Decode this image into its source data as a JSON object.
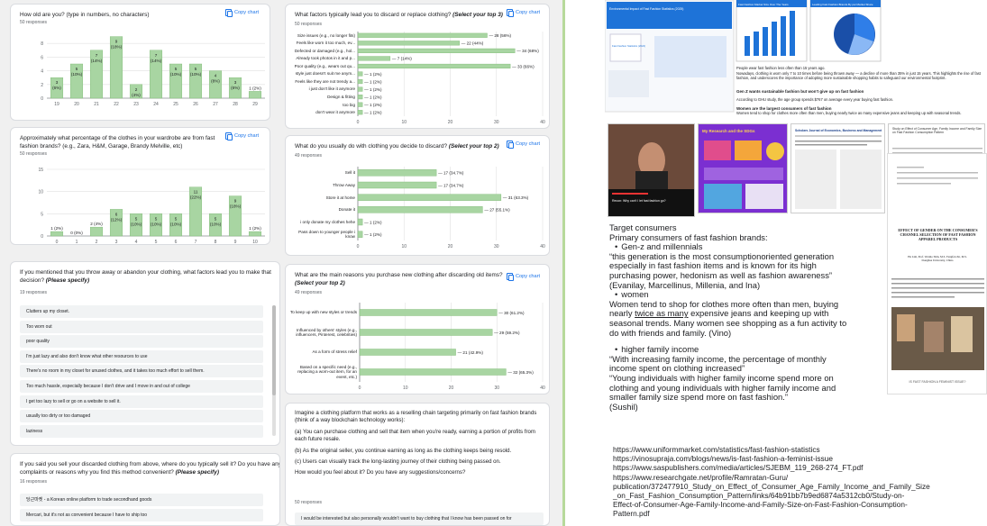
{
  "colors": {
    "bar": "#a8d5a2",
    "bar_stroke": "#7cb872",
    "accent": "#1a73e8",
    "grid": "#e0e0e0"
  },
  "copy_label": "Copy chart",
  "card_age": {
    "question": "How old are you? (type in numbers, no characters)",
    "responses": "50 responses"
  },
  "card_factors": {
    "question": "What factors typically lead you to discard or replace clothing?",
    "question_em": "(Select your top 3)",
    "responses": "50 responses"
  },
  "card_percent": {
    "question": "Approximately what percentage of the clothes in your wardrobe are from fast fashion brands? (e.g., Zara, H&M, Garage, Brandy Melville, etc)",
    "responses": "50 responses"
  },
  "card_discard": {
    "question": "What do you usually do with clothing you decide to discard?",
    "question_em": "(Select your top 2)",
    "responses": "49 responses"
  },
  "card_throw": {
    "question": "If you mentioned that you throw away or abandon your clothing, what factors lead you to make that decision?",
    "question_em": "(Please specify)",
    "responses": "19 responses",
    "answers": [
      "Clutters up my closet.",
      "Too worn out",
      "poor quality",
      "I'm just lazy and also don't know what other resources to use",
      "There's no room in my closet for unused clothes, and it takes too much effort to sell them.",
      "Too much hassle, especially because I don't drive and I move in and out of college",
      "I get too lazy to sell or go on a website to sell it.",
      "usually too dirty or too damaged",
      "laziness"
    ]
  },
  "card_reasons": {
    "question": "What are the main reasons you purchase new clothing after discarding old items?",
    "question_em": "(Select your top 2)",
    "responses": "49 responses"
  },
  "card_sell": {
    "question": "If you said you sell your discarded clothing from above, where do you typically sell it? Do you have any complaints or reasons why you find this method convenient?",
    "question_em": "(Please specify)",
    "responses": "16 responses",
    "answers": [
      "당근마켓 - a Korean online platform to trade secondhand goods",
      "Mercari, but it's not as convenient because I have to ship too"
    ]
  },
  "card_imagine": {
    "intro": "Imagine a clothing platform that works as a reselling chain targeting primarily on fast fashion brands (think of a way blockchain technology works):",
    "point_a": "(a) You can purchase clothing and sell that item when you're ready, earning a portion of profits from each future resale.",
    "point_b": "(b) As the original seller, you continue earning as long as the clothing keeps being resold.",
    "point_c": "(c) Users can visually track the long-lasting journey of their clothing being passed on.",
    "ask": "How would you feel about it? Do you have any suggestions/concerns?",
    "responses": "50 responses",
    "answer": "I would be interested but also personally wouldn't want to buy clothing that I know has been passed on for"
  },
  "chart_data": [
    {
      "type": "bar",
      "categories": [
        "19",
        "20",
        "21",
        "22",
        "23",
        "24",
        "25",
        "26",
        "27",
        "28",
        "29"
      ],
      "values": [
        3,
        5,
        7,
        9,
        2,
        7,
        5,
        5,
        4,
        3,
        1
      ],
      "labels": [
        "3\n(6%)",
        "5\n(10%)",
        "7\n(14%)",
        "9\n(18%)",
        "2\n(4%)",
        "7\n(14%)",
        "5\n(10%)",
        "5\n(10%)",
        "4\n(8%)",
        "3\n(6%)",
        "1 (2%)"
      ],
      "ylim": [
        0,
        10
      ],
      "yticks": [
        "0",
        "2",
        "4",
        "6",
        "8"
      ]
    },
    {
      "type": "bar",
      "orientation": "horizontal",
      "categories": [
        "Size issues (e.g., no longer fits)",
        "Feels like worn it too much, ev...",
        "Defected or damaged (e.g., hol...",
        "Already took photos in it and p...",
        "Poor quality (e.g., wears out qu...",
        "style just doesn't suit me anym...",
        "Feels like they are not trendy a...",
        "i just don't like it anymore",
        "Design & fitting",
        "too big",
        "don't wear it anymore"
      ],
      "values": [
        28,
        22,
        34,
        7,
        33,
        1,
        1,
        1,
        1,
        1,
        1
      ],
      "labels": [
        "28 (56%)",
        "22 (44%)",
        "34 (68%)",
        "7 (14%)",
        "33 (66%)",
        "1 (2%)",
        "1 (2%)",
        "1 (2%)",
        "1 (2%)",
        "1 (2%)",
        "1 (2%)"
      ],
      "xlim": [
        0,
        40
      ],
      "xticks": [
        "0",
        "10",
        "20",
        "30",
        "40"
      ]
    },
    {
      "type": "bar",
      "categories": [
        "0",
        "1",
        "2",
        "3",
        "4",
        "5",
        "6",
        "7",
        "8",
        "9",
        "10"
      ],
      "values": [
        1,
        0,
        2,
        6,
        5,
        5,
        5,
        11,
        5,
        9,
        1
      ],
      "labels": [
        "1 (2%)",
        "0 (0%)",
        "2 (4%)",
        "6\n(12%)",
        "5\n(10%)",
        "5\n(10%)",
        "5\n(10%)",
        "11\n(22%)",
        "5\n(10%)",
        "9\n(18%)",
        "1 (2%)"
      ],
      "ylim": [
        0,
        15
      ],
      "yticks": [
        "0",
        "5",
        "10",
        "15"
      ]
    },
    {
      "type": "bar",
      "orientation": "horizontal",
      "categories": [
        "Sell it",
        "Throw Away",
        "Store it at home",
        "Donate it",
        "i only donate my clothes hehe",
        "Pass down to younger people i know"
      ],
      "values": [
        17,
        17,
        31,
        27,
        1,
        1
      ],
      "labels": [
        "17 (34.7%)",
        "17 (34.7%)",
        "31 (63.3%)",
        "27 (55.1%)",
        "1 (2%)",
        "1 (2%)"
      ],
      "xlim": [
        0,
        40
      ],
      "xticks": [
        "0",
        "10",
        "20",
        "30",
        "40"
      ]
    },
    {
      "type": "bar",
      "orientation": "horizontal",
      "categories": [
        "To keep up with new styles or trends",
        "Influenced by others' styles (e.g., influencers, Pinterest, celebrities)",
        "As a form of stress relief",
        "Based on a specific need (e.g., replacing a worn-out item, for an event, etc.)"
      ],
      "values": [
        30,
        29,
        21,
        32
      ],
      "labels": [
        "30 (61.2%)",
        "29 (59.2%)",
        "21 (42.9%)",
        "32 (65.3%)"
      ],
      "xlim": [
        0,
        40
      ],
      "xticks": [
        "0",
        "10",
        "20",
        "30",
        "40"
      ]
    }
  ],
  "slide": {
    "doc_title": "Environmental Impact of Fast Fashion Statistics (2025)",
    "stats_title": "Fast Fashion Statistics (2024)",
    "chart1_title": "Fast Fashion Market Size Over The Years",
    "chart2_title": "Leading Fast Fashion Brands By par Market Share",
    "para1": "People wear fast fashion less often than 15 years ago.",
    "para1b": "Nowadays, clothing is worn only 7 to 10 times before being thrown away — a decline of more than 35% in just 15 years. This highlights the rise of fast fashion, and underscores the importance of adopting more sustainable shopping habits to safeguard our environmental footprint.",
    "heading2": "Gen Z wants sustainable fashion but won't give up on fast fashion",
    "para2": "According to GHU study, the age group spends $767 on average every year buying fast fashion.",
    "heading3": "Women are the largest consumers of fast fashion",
    "para3": "Women tend to shop for clothes more often than men, buying nearly twice as many expensive jeans and keeping up with seasonal trends.",
    "video_caption": "Recon: Why can't I let fast fashion go?",
    "tile2_title": "My Research and the SDGs",
    "paper_title": "EFFECT OF GENDER ON THE CONSUMER'S CHANNEL SELECTION OF FAST FASHION APPAREL PRODUCTS",
    "paper_authors": "Ha Lim, Prof. Wonho Shin, M.S. Fengfen Jin, M.S. Donghua University, China",
    "paper_caption": "IS FAST FASHION A FEMINIST ISSUE?",
    "journal_title": "Scholars Journal of Economics, Business and Management",
    "journal_article": "Study on Effect of Consumer Age, Family Income and Family Size on Fast Fashion Consumption Pattern"
  },
  "notes": {
    "title": "Target consumers",
    "primary": "Primary consumers of fast fashion brands:",
    "b1": "Gen-z and millennials",
    "q1": "“this generation is the most consumptionoriented generation especially in fast fashion items and is known for its high purchasing power, hedonism as well as fashion awareness” (Evanilay, Marcellinus, Millenia, and Ina)",
    "b2": "women",
    "p2a": "Women tend to shop for clothes more often than men, buying nearly ",
    "p2u": "twice as many",
    "p2b": " expensive jeans and keeping up with seasonal trends. Many women see shopping as a fun activity to do with friends and family. (Vino)",
    "b3": "higher family income",
    "q3": "“With increasing family income, the percentage of monthly income spent on clothing increased”",
    "q4": "“Young individuals with higher family income spend more on clothing and young individuals with higher family income and smaller family size spend more on fast fashion.”",
    "q4src": "(Sushil)"
  },
  "links": [
    "https://www.uniformmarket.com/statistics/fast-fashion-statistics",
    "https://vinosupraja.com/blogs/news/is-fast-fashion-a-feminist-issue",
    "https://www.saspublishers.com/media/articles/SJEBM_119_268-274_FT.pdf",
    "https://www.researchgate.net/profile/Ramratan-Guru/",
    "publication/372477910_Study_on_Effect_of_Consumer_Age_Family_Income_and_Family_Size",
    "_on_Fast_Fashion_Consumption_Pattern/links/64b91bb7b9ed6874a5312cb0/Study-on-",
    "Effect-of-Consumer-Age-Family-Income-and-Family-Size-on-Fast-Fashion-Consumption-",
    "Pattern.pdf"
  ]
}
